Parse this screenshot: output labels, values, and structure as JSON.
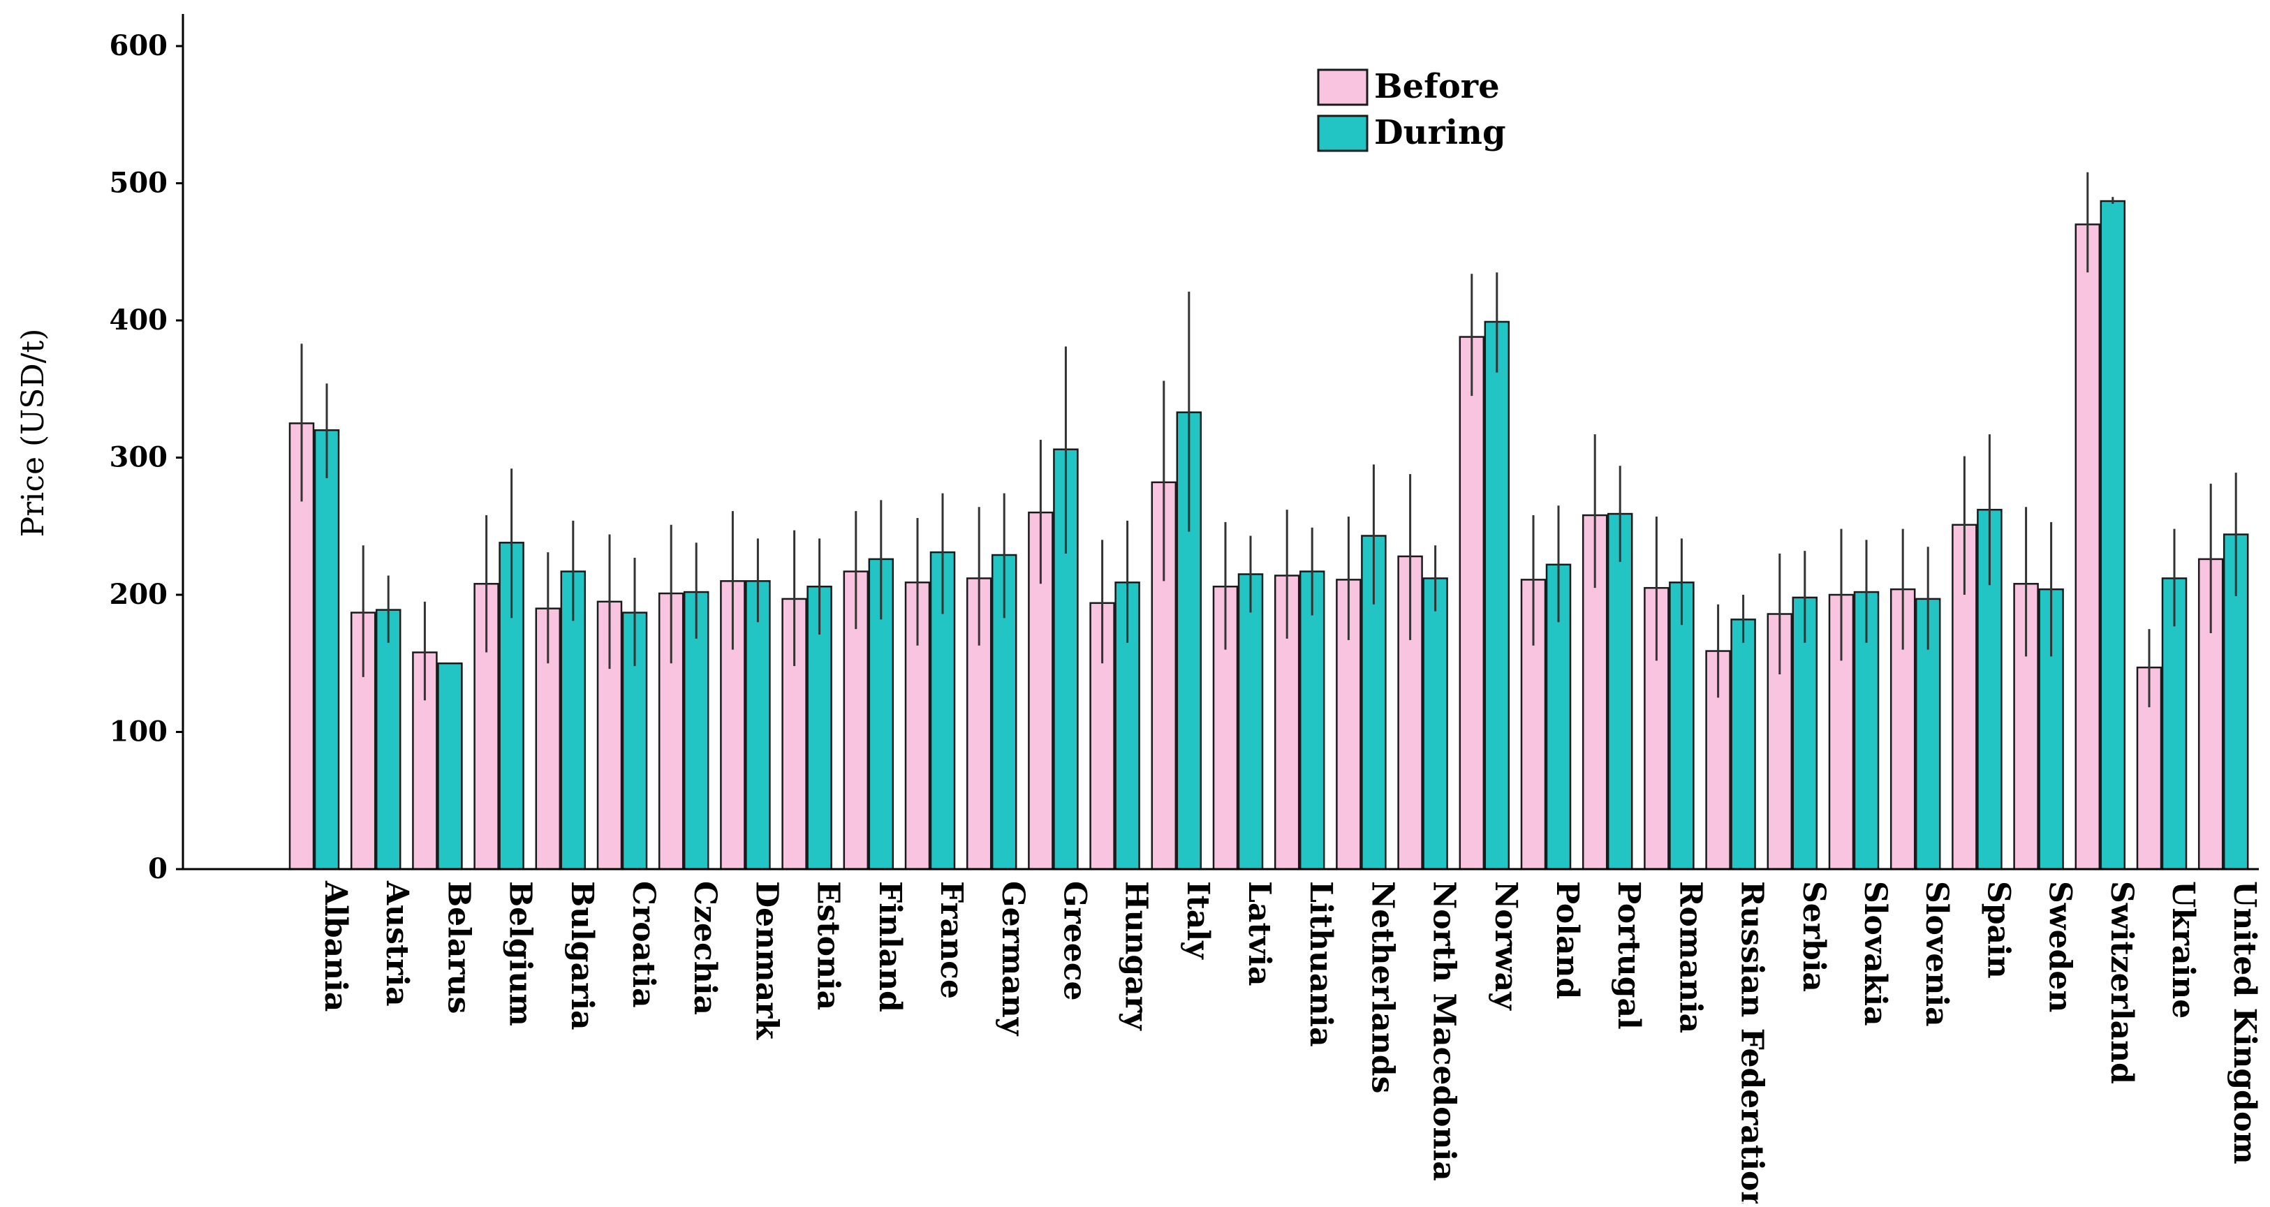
{
  "chart_data": {
    "type": "bar",
    "title": "",
    "xlabel": "",
    "ylabel": "Price (USD/t)",
    "ylim": [
      0,
      600
    ],
    "yticks": [
      0,
      100,
      200,
      300,
      400,
      500,
      600
    ],
    "grid": false,
    "legend_position": "top-center",
    "categories": [
      "Albania",
      "Austria",
      "Belarus",
      "Belgium",
      "Bulgaria",
      "Croatia",
      "Czechia",
      "Denmark",
      "Estonia",
      "Finland",
      "France",
      "Germany",
      "Greece",
      "Hungary",
      "Italy",
      "Latvia",
      "Lithuania",
      "Netherlands",
      "North Macedonia",
      "Norway",
      "Poland",
      "Portugal",
      "Romania",
      "Russian Federation",
      "Serbia",
      "Slovakia",
      "Slovenia",
      "Spain",
      "Sweden",
      "Switzerland",
      "Ukraine",
      "United Kingdom"
    ],
    "series": [
      {
        "name": "Before",
        "color": "#f9c4e0",
        "values": [
          325,
          187,
          158,
          208,
          190,
          195,
          201,
          210,
          197,
          217,
          209,
          212,
          260,
          194,
          282,
          206,
          214,
          211,
          228,
          388,
          211,
          258,
          205,
          159,
          186,
          200,
          204,
          251,
          208,
          470,
          147,
          226
        ],
        "err_low": [
          268,
          140,
          123,
          158,
          150,
          146,
          150,
          160,
          148,
          175,
          163,
          163,
          208,
          150,
          210,
          160,
          168,
          167,
          167,
          345,
          163,
          205,
          152,
          125,
          142,
          152,
          160,
          200,
          155,
          435,
          118,
          172
        ],
        "err_high": [
          383,
          236,
          195,
          258,
          231,
          244,
          251,
          261,
          247,
          261,
          256,
          264,
          313,
          240,
          356,
          253,
          262,
          257,
          288,
          434,
          258,
          317,
          257,
          193,
          230,
          248,
          248,
          301,
          264,
          508,
          175,
          281
        ]
      },
      {
        "name": "During",
        "color": "#22c5c4",
        "values": [
          320,
          189,
          150,
          238,
          217,
          187,
          202,
          210,
          206,
          226,
          231,
          229,
          306,
          209,
          333,
          215,
          217,
          243,
          212,
          399,
          222,
          259,
          209,
          182,
          198,
          202,
          197,
          262,
          204,
          487,
          212,
          244
        ],
        "err_low": [
          285,
          165,
          150,
          183,
          181,
          148,
          168,
          180,
          171,
          182,
          186,
          183,
          230,
          165,
          246,
          187,
          185,
          193,
          188,
          362,
          180,
          224,
          178,
          165,
          165,
          165,
          160,
          207,
          155,
          485,
          177,
          199
        ],
        "err_high": [
          354,
          214,
          150,
          292,
          254,
          227,
          238,
          241,
          241,
          269,
          274,
          274,
          381,
          254,
          421,
          243,
          249,
          295,
          236,
          435,
          265,
          294,
          241,
          200,
          232,
          240,
          235,
          317,
          253,
          490,
          248,
          289
        ]
      }
    ]
  }
}
